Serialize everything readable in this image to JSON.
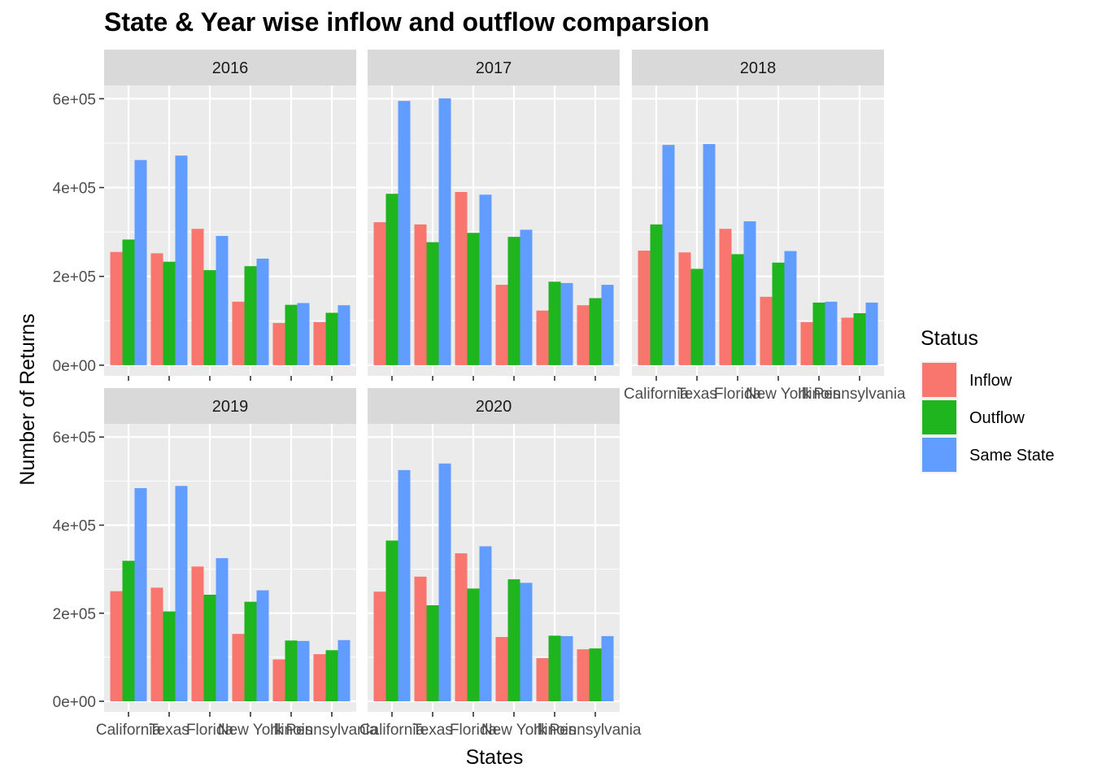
{
  "chart_data": {
    "type": "bar",
    "title": "State & Year wise inflow and outflow comparsion",
    "xlabel": "States",
    "ylabel": "Number of Returns",
    "ylim": [
      -24000,
      630000
    ],
    "yticks": [
      0,
      200000,
      400000,
      600000
    ],
    "ytick_labels": [
      "0e+00",
      "2e+05",
      "4e+05",
      "6e+05"
    ],
    "categories": [
      "California",
      "Texas",
      "Florida",
      "New York",
      "Illinois",
      "Pennsylvania"
    ],
    "legend": {
      "title": "Status",
      "placement": "right",
      "entries": [
        "Inflow",
        "Outflow",
        "Same State"
      ]
    },
    "series_colors": [
      "#F8766D",
      "#1FB51F",
      "#619CFF"
    ],
    "grid": true,
    "panels": [
      {
        "year": "2016",
        "series": [
          {
            "name": "Inflow",
            "values": [
              255000,
              252000,
              307000,
              143000,
              95000,
              97000
            ]
          },
          {
            "name": "Outflow",
            "values": [
              283000,
              233000,
              214000,
              223000,
              136000,
              118000
            ]
          },
          {
            "name": "Same State",
            "values": [
              462000,
              472000,
              291000,
              240000,
              140000,
              135000
            ]
          }
        ]
      },
      {
        "year": "2017",
        "series": [
          {
            "name": "Inflow",
            "values": [
              322000,
              317000,
              390000,
              181000,
              123000,
              135000
            ]
          },
          {
            "name": "Outflow",
            "values": [
              386000,
              277000,
              298000,
              289000,
              188000,
              151000
            ]
          },
          {
            "name": "Same State",
            "values": [
              595000,
              601000,
              384000,
              305000,
              185000,
              181000
            ]
          }
        ]
      },
      {
        "year": "2018",
        "series": [
          {
            "name": "Inflow",
            "values": [
              258000,
              254000,
              307000,
              154000,
              97000,
              107000
            ]
          },
          {
            "name": "Outflow",
            "values": [
              317000,
              217000,
              250000,
              231000,
              141000,
              117000
            ]
          },
          {
            "name": "Same State",
            "values": [
              496000,
              498000,
              324000,
              257000,
              143000,
              141000
            ]
          }
        ]
      },
      {
        "year": "2019",
        "series": [
          {
            "name": "Inflow",
            "values": [
              250000,
              258000,
              306000,
              153000,
              95000,
              107000
            ]
          },
          {
            "name": "Outflow",
            "values": [
              319000,
              204000,
              242000,
              226000,
              138000,
              116000
            ]
          },
          {
            "name": "Same State",
            "values": [
              484000,
              489000,
              325000,
              252000,
              137000,
              139000
            ]
          }
        ]
      },
      {
        "year": "2020",
        "series": [
          {
            "name": "Inflow",
            "values": [
              249000,
              283000,
              336000,
              146000,
              98000,
              118000
            ]
          },
          {
            "name": "Outflow",
            "values": [
              365000,
              218000,
              256000,
              277000,
              149000,
              120000
            ]
          },
          {
            "name": "Same State",
            "values": [
              525000,
              540000,
              352000,
              269000,
              148000,
              148000
            ]
          }
        ]
      }
    ]
  }
}
